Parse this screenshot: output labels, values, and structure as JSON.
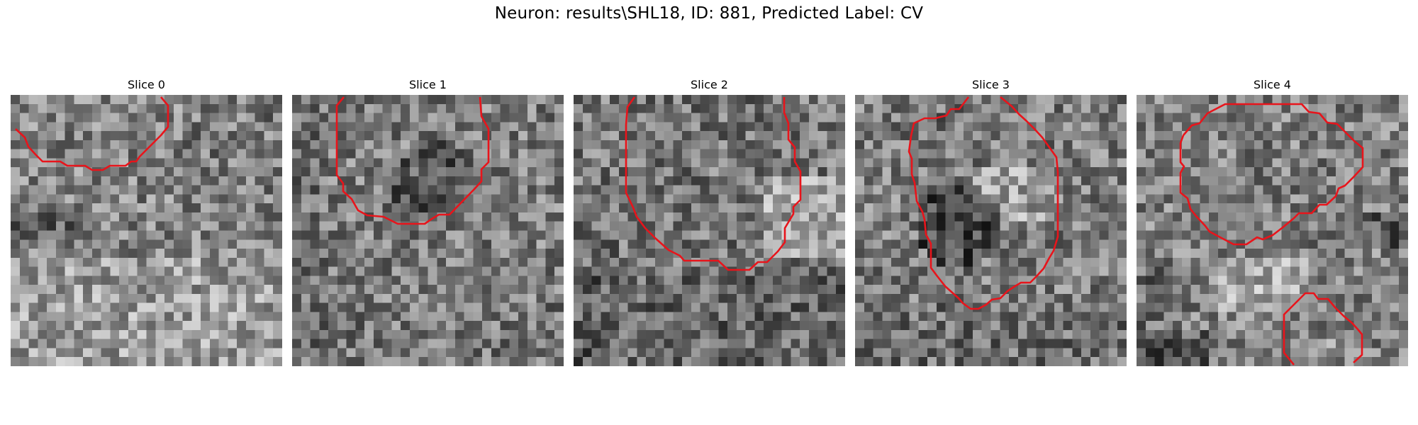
{
  "figure": {
    "title": "Neuron: results\\SHL18, ID: 881, Predicted Label: CV"
  },
  "colors": {
    "contour": "#e8141b",
    "background": "#ffffff"
  },
  "panels": [
    {
      "title": "Slice 0"
    },
    {
      "title": "Slice 1"
    },
    {
      "title": "Slice 2"
    },
    {
      "title": "Slice 3"
    },
    {
      "title": "Slice 4"
    }
  ]
}
